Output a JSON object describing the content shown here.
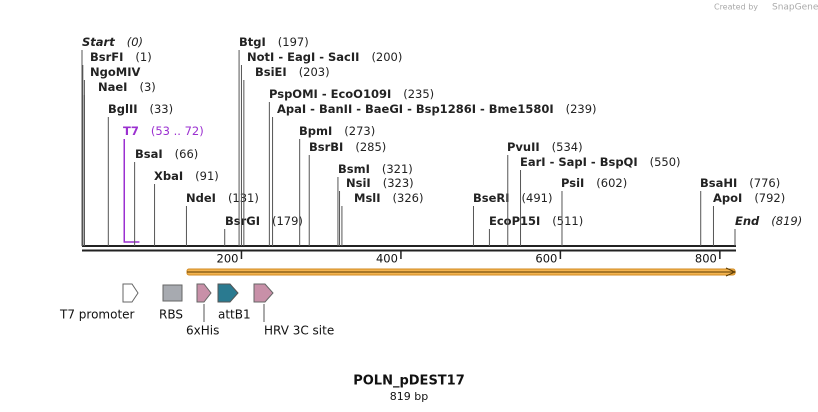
{
  "watermark": {
    "prefix": "Created by",
    "brand": "SnapGene"
  },
  "map": {
    "name": "POLN_pDEST17",
    "size": {
      "value": 819,
      "label": "819 bp"
    },
    "separator": " - ",
    "ticks": [
      200,
      400,
      600,
      800
    ],
    "sites": [
      {
        "names": [
          "Start"
        ],
        "position": 0,
        "label": "(0)"
      },
      {
        "names": [
          "BsrFI"
        ],
        "position": 1,
        "label": "(1)"
      },
      {
        "names": [
          "NgoMIV"
        ],
        "position": 3
      },
      {
        "names": [
          "NaeI"
        ],
        "position": 3,
        "label": "(3)"
      },
      {
        "names": [
          "BglII"
        ],
        "position": 33,
        "label": "(33)"
      },
      {
        "names": [
          "T7"
        ],
        "start": 53,
        "end": 72,
        "label": "(53 .. 72)",
        "color": "#9b30d0"
      },
      {
        "names": [
          "BsaI"
        ],
        "position": 66,
        "label": "(66)"
      },
      {
        "names": [
          "XbaI"
        ],
        "position": 91,
        "label": "(91)"
      },
      {
        "names": [
          "NdeI"
        ],
        "position": 131,
        "label": "(131)"
      },
      {
        "names": [
          "BsrGI"
        ],
        "position": 179,
        "label": "(179)"
      },
      {
        "names": [
          "BtgI"
        ],
        "position": 197,
        "label": "(197)"
      },
      {
        "names": [
          "NotI",
          "EagI",
          "SacII"
        ],
        "position": 200,
        "label": "(200)"
      },
      {
        "names": [
          "BsiEI"
        ],
        "position": 203,
        "label": "(203)"
      },
      {
        "names": [
          "PspOMI",
          "EcoO109I"
        ],
        "position": 235,
        "label": "(235)"
      },
      {
        "names": [
          "ApaI",
          "BanII",
          "BaeGI",
          "Bsp1286I",
          "Bme1580I"
        ],
        "position": 239,
        "label": "(239)"
      },
      {
        "names": [
          "BpmI"
        ],
        "position": 273,
        "label": "(273)"
      },
      {
        "names": [
          "BsrBI"
        ],
        "position": 285,
        "label": "(285)"
      },
      {
        "names": [
          "BsmI"
        ],
        "position": 321,
        "label": "(321)"
      },
      {
        "names": [
          "NsiI"
        ],
        "position": 323,
        "label": "(323)"
      },
      {
        "names": [
          "MslI"
        ],
        "position": 326,
        "label": "(326)"
      },
      {
        "names": [
          "BseRI"
        ],
        "position": 491,
        "label": "(491)"
      },
      {
        "names": [
          "EcoP15I"
        ],
        "position": 511,
        "label": "(511)"
      },
      {
        "names": [
          "PvuII"
        ],
        "position": 534,
        "label": "(534)"
      },
      {
        "names": [
          "EarI",
          "SapI",
          "BspQI"
        ],
        "position": 550,
        "label": "(550)"
      },
      {
        "names": [
          "PsiI"
        ],
        "position": 602,
        "label": "(602)"
      },
      {
        "names": [
          "BsaHI"
        ],
        "position": 776,
        "label": "(776)"
      },
      {
        "names": [
          "ApoI"
        ],
        "position": 792,
        "label": "(792)"
      },
      {
        "names": [
          "End"
        ],
        "position": 819,
        "label": "(819)"
      }
    ],
    "features": [
      {
        "name": "T7 promoter"
      },
      {
        "name": "RBS"
      },
      {
        "name": "6xHis"
      },
      {
        "name": "attB1"
      },
      {
        "name": "HRV 3C site"
      }
    ]
  }
}
